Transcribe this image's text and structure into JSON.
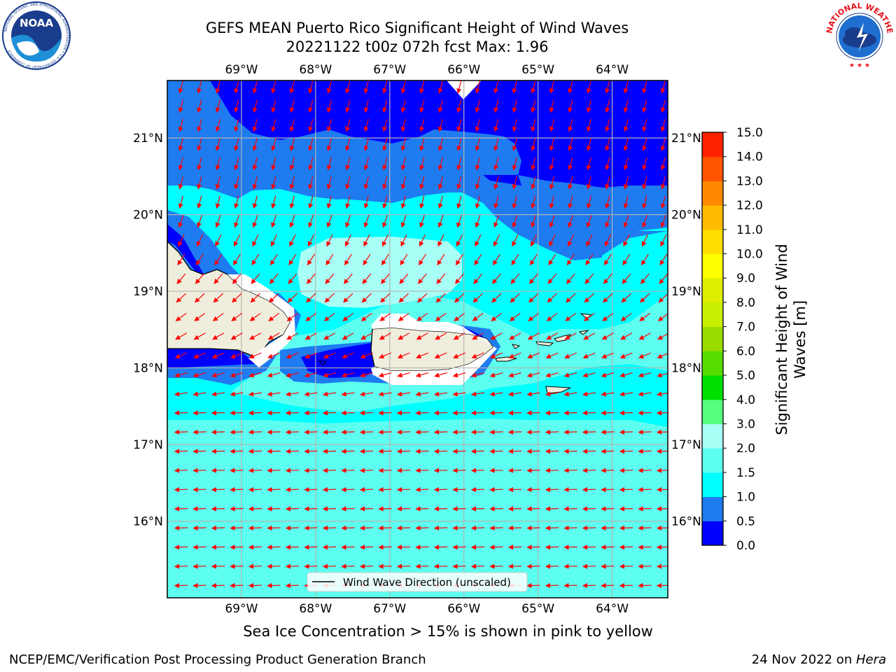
{
  "title": {
    "line1": "GEFS MEAN Puerto Rico Significant Height of Wind Waves",
    "line2": "20221122 t00z 072h fcst   Max: 1.96"
  },
  "logos": {
    "left": "NOAA",
    "left_ring_text": "NATIONAL OCEANIC AND ATMOSPHERIC ADMINISTRATION • U.S. DEPARTMENT OF COMMERCE",
    "right_ring_text": "NATIONAL WEATHER SERVICE"
  },
  "map": {
    "lon_ticks": [
      "69°W",
      "68°W",
      "67°W",
      "66°W",
      "65°W",
      "64°W"
    ],
    "lat_ticks": [
      "21°N",
      "20°N",
      "19°N",
      "18°N",
      "17°N",
      "16°N"
    ],
    "lon_values": [
      -69,
      -68,
      -67,
      -66,
      -65,
      -64
    ],
    "lat_values": [
      21,
      20,
      19,
      18,
      17,
      16
    ],
    "lon_range": [
      -70.0,
      -63.25
    ],
    "lat_range": [
      15.0,
      21.75
    ],
    "legend": "Wind Wave Direction (unscaled)",
    "land_color": "#efeddc",
    "arrow_color": "#ff0000"
  },
  "colorbar": {
    "label": "Significant Height of Wind Waves [m]",
    "label_line1": "Significant Height of Wind",
    "label_line2": "Waves [m]",
    "ticks": [
      "0.0",
      "0.5",
      "1.0",
      "1.5",
      "2.0",
      "3.0",
      "4.0",
      "5.0",
      "6.0",
      "7.0",
      "8.0",
      "9.0",
      "10.0",
      "11.0",
      "12.0",
      "13.0",
      "14.0",
      "15.0"
    ],
    "colors": [
      "#0000ff",
      "#1e7bf0",
      "#00ffff",
      "#5cfff0",
      "#a8fff5",
      "#55ff7f",
      "#00e000",
      "#55dd00",
      "#99dd00",
      "#c8ee00",
      "#ddee00",
      "#ffff00",
      "#ffdd00",
      "#ffbb00",
      "#ff8800",
      "#ff5500",
      "#ff2200"
    ]
  },
  "caption": "Sea Ice Concentration > 15% is shown in pink to yellow",
  "footer": {
    "left": "NCEP/EMC/Verification Post Processing Product Generation Branch",
    "right_prefix": "24 Nov 2022 on ",
    "right_host": "Hera"
  }
}
